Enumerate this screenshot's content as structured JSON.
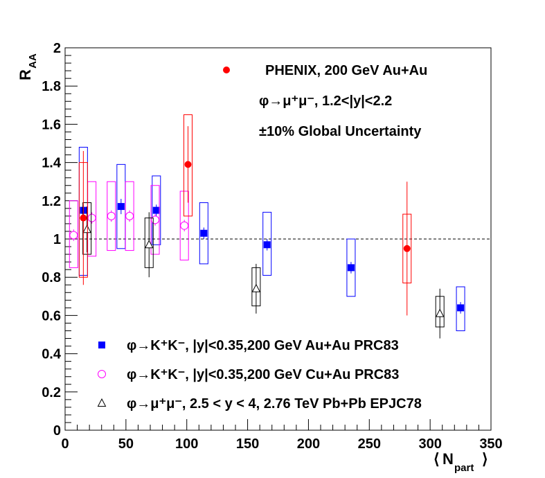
{
  "chart_data": {
    "type": "scatter",
    "ylabel_main": "R",
    "ylabel_sub": "AA",
    "xlabel_main": "N",
    "xlabel_sub": "part",
    "xlim": [
      0,
      350
    ],
    "ylim": [
      0,
      2
    ],
    "x_ticks": [
      "0",
      "50",
      "100",
      "150",
      "200",
      "250",
      "300",
      "350"
    ],
    "y_ticks": [
      "0",
      "0.2",
      "0.4",
      "0.6",
      "0.8",
      "1",
      "1.2",
      "1.4",
      "1.6",
      "1.8",
      "2"
    ],
    "reference_line": 1,
    "annotations": {
      "line1": "PHENIX, 200 GeV Au+Au",
      "line2": "φ→μ⁺μ⁻, 1.2<|y|<2.2",
      "line3": "±10% Global Uncertainty"
    },
    "series": [
      {
        "name": "φ→K⁺K⁻, |y|<0.35,200 GeV Au+Au PRC83",
        "color": "#0000ff",
        "marker": "filled-square",
        "points": [
          {
            "x": 15,
            "y": 1.15,
            "stat": 0.03,
            "sys_lo": 0.81,
            "sys_hi": 1.48
          },
          {
            "x": 46,
            "y": 1.17,
            "stat": 0.04,
            "sys_lo": 0.95,
            "sys_hi": 1.39
          },
          {
            "x": 75,
            "y": 1.15,
            "stat": 0.03,
            "sys_lo": 0.97,
            "sys_hi": 1.33
          },
          {
            "x": 114,
            "y": 1.03,
            "stat": 0.03,
            "sys_lo": 0.87,
            "sys_hi": 1.19
          },
          {
            "x": 166,
            "y": 0.97,
            "stat": 0.03,
            "sys_lo": 0.81,
            "sys_hi": 1.14
          },
          {
            "x": 235,
            "y": 0.85,
            "stat": 0.03,
            "sys_lo": 0.7,
            "sys_hi": 1.0
          },
          {
            "x": 325,
            "y": 0.64,
            "stat": 0.03,
            "sys_lo": 0.52,
            "sys_hi": 0.75
          }
        ]
      },
      {
        "name": "φ→K⁺K⁻, |y|<0.35,200 GeV Cu+Au PRC83",
        "color": "#ff00ff",
        "marker": "open-circle",
        "points": [
          {
            "x": 7,
            "y": 1.02,
            "stat": 0.03,
            "sys_lo": 0.85,
            "sys_hi": 1.2
          },
          {
            "x": 22,
            "y": 1.11,
            "stat": 0.03,
            "sys_lo": 0.91,
            "sys_hi": 1.3
          },
          {
            "x": 38,
            "y": 1.12,
            "stat": 0.03,
            "sys_lo": 0.94,
            "sys_hi": 1.3
          },
          {
            "x": 53,
            "y": 1.12,
            "stat": 0.03,
            "sys_lo": 0.94,
            "sys_hi": 1.3
          },
          {
            "x": 74,
            "y": 1.1,
            "stat": 0.03,
            "sys_lo": 0.92,
            "sys_hi": 1.28
          },
          {
            "x": 98,
            "y": 1.07,
            "stat": 0.03,
            "sys_lo": 0.89,
            "sys_hi": 1.25
          }
        ]
      },
      {
        "name": "φ→μ⁺μ⁻, 2.5 < y < 4, 2.76 TeV Pb+Pb EPJC78",
        "color": "#000000",
        "marker": "open-triangle",
        "points": [
          {
            "x": 18,
            "y": 1.05,
            "stat": 0.12,
            "sys_lo": 0.92,
            "sys_hi": 1.19
          },
          {
            "x": 69,
            "y": 0.97,
            "stat": 0.17,
            "sys_lo": 0.85,
            "sys_hi": 1.11
          },
          {
            "x": 157,
            "y": 0.74,
            "stat": 0.13,
            "sys_lo": 0.65,
            "sys_hi": 0.85
          },
          {
            "x": 308,
            "y": 0.61,
            "stat": 0.13,
            "sys_lo": 0.54,
            "sys_hi": 0.7
          }
        ]
      },
      {
        "name": "PHENIX, 200 GeV Au+Au",
        "color": "#ff0000",
        "marker": "filled-circle",
        "points": [
          {
            "x": 15,
            "y": 1.11,
            "stat": 0.35,
            "sys_lo": 0.8,
            "sys_hi": 1.4
          },
          {
            "x": 101,
            "y": 1.39,
            "stat": 0.2,
            "sys_lo": 1.12,
            "sys_hi": 1.65
          },
          {
            "x": 281,
            "y": 0.95,
            "stat": 0.35,
            "sys_lo": 0.77,
            "sys_hi": 1.13
          }
        ]
      }
    ],
    "legend": [
      {
        "text": "φ→K⁺K⁻, |y|<0.35,200 GeV Au+Au PRC83",
        "marker": "filled-square",
        "color": "#0000ff"
      },
      {
        "text": "φ→K⁺K⁻, |y|<0.35,200 GeV Cu+Au PRC83",
        "marker": "open-circle",
        "color": "#ff00ff"
      },
      {
        "text": "φ→μ⁺μ⁻, 2.5 < y < 4, 2.76 TeV Pb+Pb EPJC78",
        "marker": "open-triangle",
        "color": "#000000"
      }
    ]
  }
}
